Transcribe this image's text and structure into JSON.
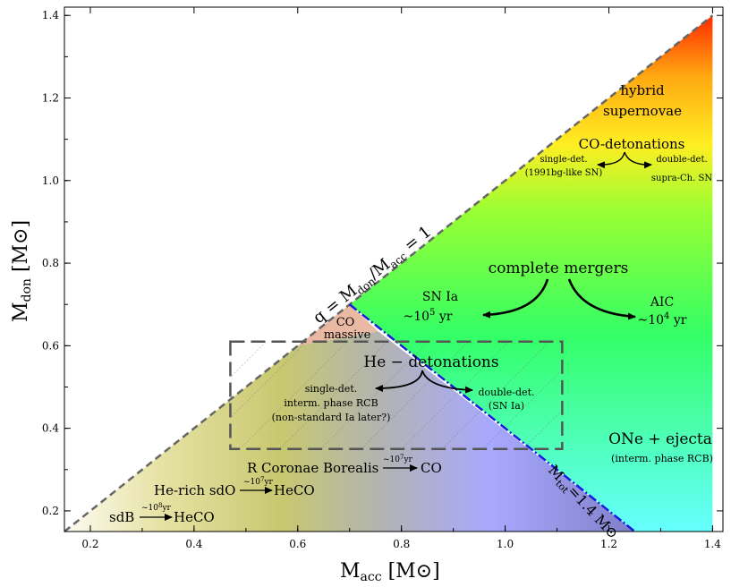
{
  "chart_data": {
    "type": "diagram",
    "xlabel_main": "M",
    "xlabel_sub": "acc",
    "xlabel_unit": "[M",
    "ylabel_main": "M",
    "ylabel_sub": "don",
    "ylabel_unit": "[M",
    "xlim": [
      0.15,
      1.42
    ],
    "ylim": [
      0.15,
      1.42
    ],
    "xticks": [
      "0.2",
      "0.4",
      "0.6",
      "0.8",
      "1.0",
      "1.2",
      "1.4"
    ],
    "yticks": [
      "0.2",
      "0.4",
      "0.6",
      "0.8",
      "1.0",
      "1.2",
      "1.4"
    ],
    "lines": {
      "q1": {
        "from": [
          0.15,
          0.15
        ],
        "to": [
          1.4,
          1.4
        ]
      },
      "mtot": {
        "from": [
          0.7,
          0.7
        ],
        "to": [
          1.25,
          0.15
        ]
      }
    },
    "boxes": {
      "he_box": {
        "x": [
          0.47,
          1.11
        ],
        "y": [
          0.35,
          0.61
        ]
      }
    },
    "annotations": {
      "q_line": "q = M",
      "q_line_sub": "don",
      "q_line_rest": "/M",
      "q_line_sub2": "acc",
      "q_line_end": " = 1",
      "hybrid_1": "hybrid",
      "hybrid_2": "supernovae",
      "co_det": "CO-detonations",
      "co_single_1": "single-det.",
      "co_single_2": "(1991bg-like SN)",
      "co_double_1": "double-det.",
      "co_double_2": "supra-Ch. SN",
      "complete": "complete mergers",
      "snia_1": "SN Ia",
      "snia_2": "~10",
      "snia_exp": "5",
      "snia_unit": " yr",
      "aic_1": "AIC",
      "aic_2": "~10",
      "aic_exp": "4",
      "aic_unit": " yr",
      "co_massive_1": "CO",
      "co_massive_2": "massive",
      "he_det": "He − detonations",
      "he_single_1": "single-det.",
      "he_single_2": "interm. phase RCB",
      "he_single_3": "(non-standard Ia later?)",
      "he_double_1": "double-det.",
      "he_double_2": "(SN Ia)",
      "one_1": "ONe + ejecta",
      "one_2": "(interm. phase RCB)",
      "mtot": "M",
      "mtot_sub": "tot",
      "mtot_rest": "=1.4 M",
      "rcb": "R Coronae Borealis",
      "rcb_time": "~10",
      "rcb_exp": "7",
      "rcb_unit": "yr",
      "rcb_to": "CO",
      "hesdo": "He-rich sdO",
      "hesdo_time": "~10",
      "hesdo_exp": "7",
      "hesdo_unit": "yr",
      "hesdo_to": "HeCO",
      "sdb": "sdB",
      "sdb_time": "~10",
      "sdb_exp": "8",
      "sdb_unit": "yr",
      "sdb_to": "HeCO",
      "sun": "⊙"
    }
  }
}
